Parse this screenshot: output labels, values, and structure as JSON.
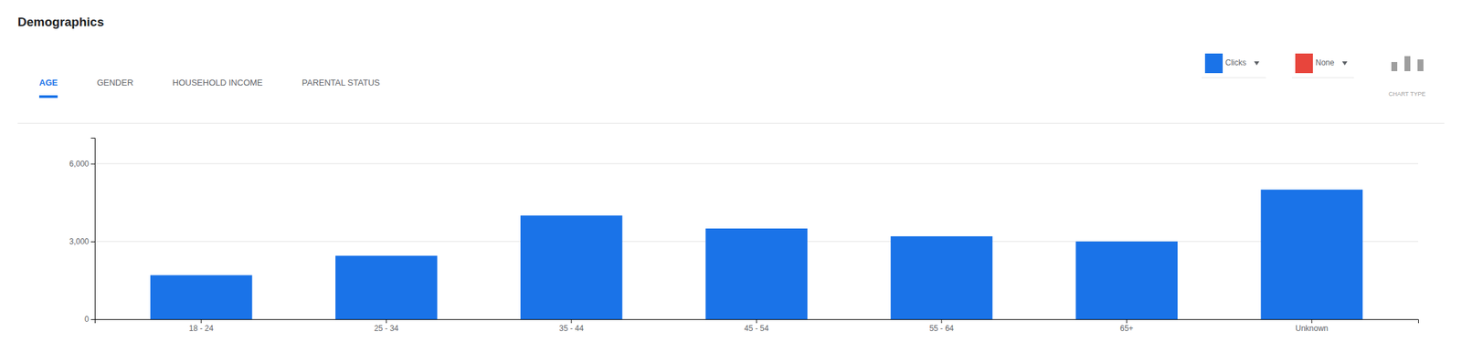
{
  "chart_data": {
    "type": "bar",
    "title": "Demographics",
    "categories": [
      "18 - 24",
      "25 - 34",
      "35 - 44",
      "45 - 54",
      "55 - 64",
      "65+",
      "Unknown"
    ],
    "values": [
      1700,
      2450,
      4000,
      3500,
      3200,
      3000,
      5000
    ],
    "color": "#1a73e8",
    "ylim": [
      0,
      7000
    ],
    "yticks": [
      0,
      {
        "value": 3000,
        "label": "3,000"
      },
      {
        "value": 6000,
        "label": "6,000"
      }
    ],
    "grid": true,
    "annotations": [
      {
        "text": "AGE",
        "color": "#1a73e8"
      },
      {
        "text": "GENDER",
        "color": "#5f6368"
      },
      {
        "text": "HOUSEHOLD INCOME",
        "color": "#5f6368"
      },
      {
        "text": "PARENTAL STATUS",
        "color": "#5f6368"
      },
      {
        "text": "Clicks",
        "color": "#1a73e8"
      },
      {
        "text": "None",
        "color": "#e8453c"
      },
      {
        "text": "CHART TYPE",
        "color": "#9e9e9e"
      }
    ]
  }
}
